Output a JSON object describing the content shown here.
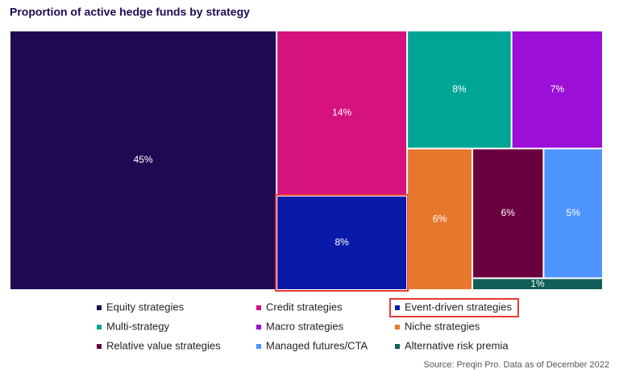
{
  "chart_data": {
    "type": "treemap",
    "title": "Proportion of active hedge funds by strategy",
    "series": [
      {
        "name": "Equity strategies",
        "color": "#1e0a52",
        "values": [
          45
        ],
        "value_labels": [
          "45%"
        ]
      },
      {
        "name": "Credit strategies",
        "color": "#d6127f",
        "values": [
          14
        ],
        "value_labels": [
          "14%"
        ]
      },
      {
        "name": "Event-driven strategies",
        "color": "#0a1aa8",
        "values": [
          8
        ],
        "value_labels": [
          "8%"
        ]
      },
      {
        "name": "Multi-strategy",
        "color": "#00a596",
        "values": [
          8
        ],
        "value_labels": [
          "8%"
        ]
      },
      {
        "name": "Macro strategies",
        "color": "#9b0fd6",
        "values": [
          7
        ],
        "value_labels": [
          "7%"
        ]
      },
      {
        "name": "Niche strategies",
        "color": "#e8772e",
        "values": [
          6
        ],
        "value_labels": [
          "6%"
        ]
      },
      {
        "name": "Relative value strategies",
        "color": "#6b0040",
        "values": [
          6
        ],
        "value_labels": [
          "6%"
        ]
      },
      {
        "name": "Managed futures/CTA",
        "color": "#4d94ff",
        "values": [
          5
        ],
        "value_labels": [
          "5%"
        ]
      },
      {
        "name": "Alternative risk premia",
        "color": "#0f5e58",
        "values": [
          1
        ],
        "value_labels": [
          "1%"
        ]
      }
    ],
    "highlight": 2,
    "source": "Source: Preqin Pro. Data as of December 2022"
  }
}
